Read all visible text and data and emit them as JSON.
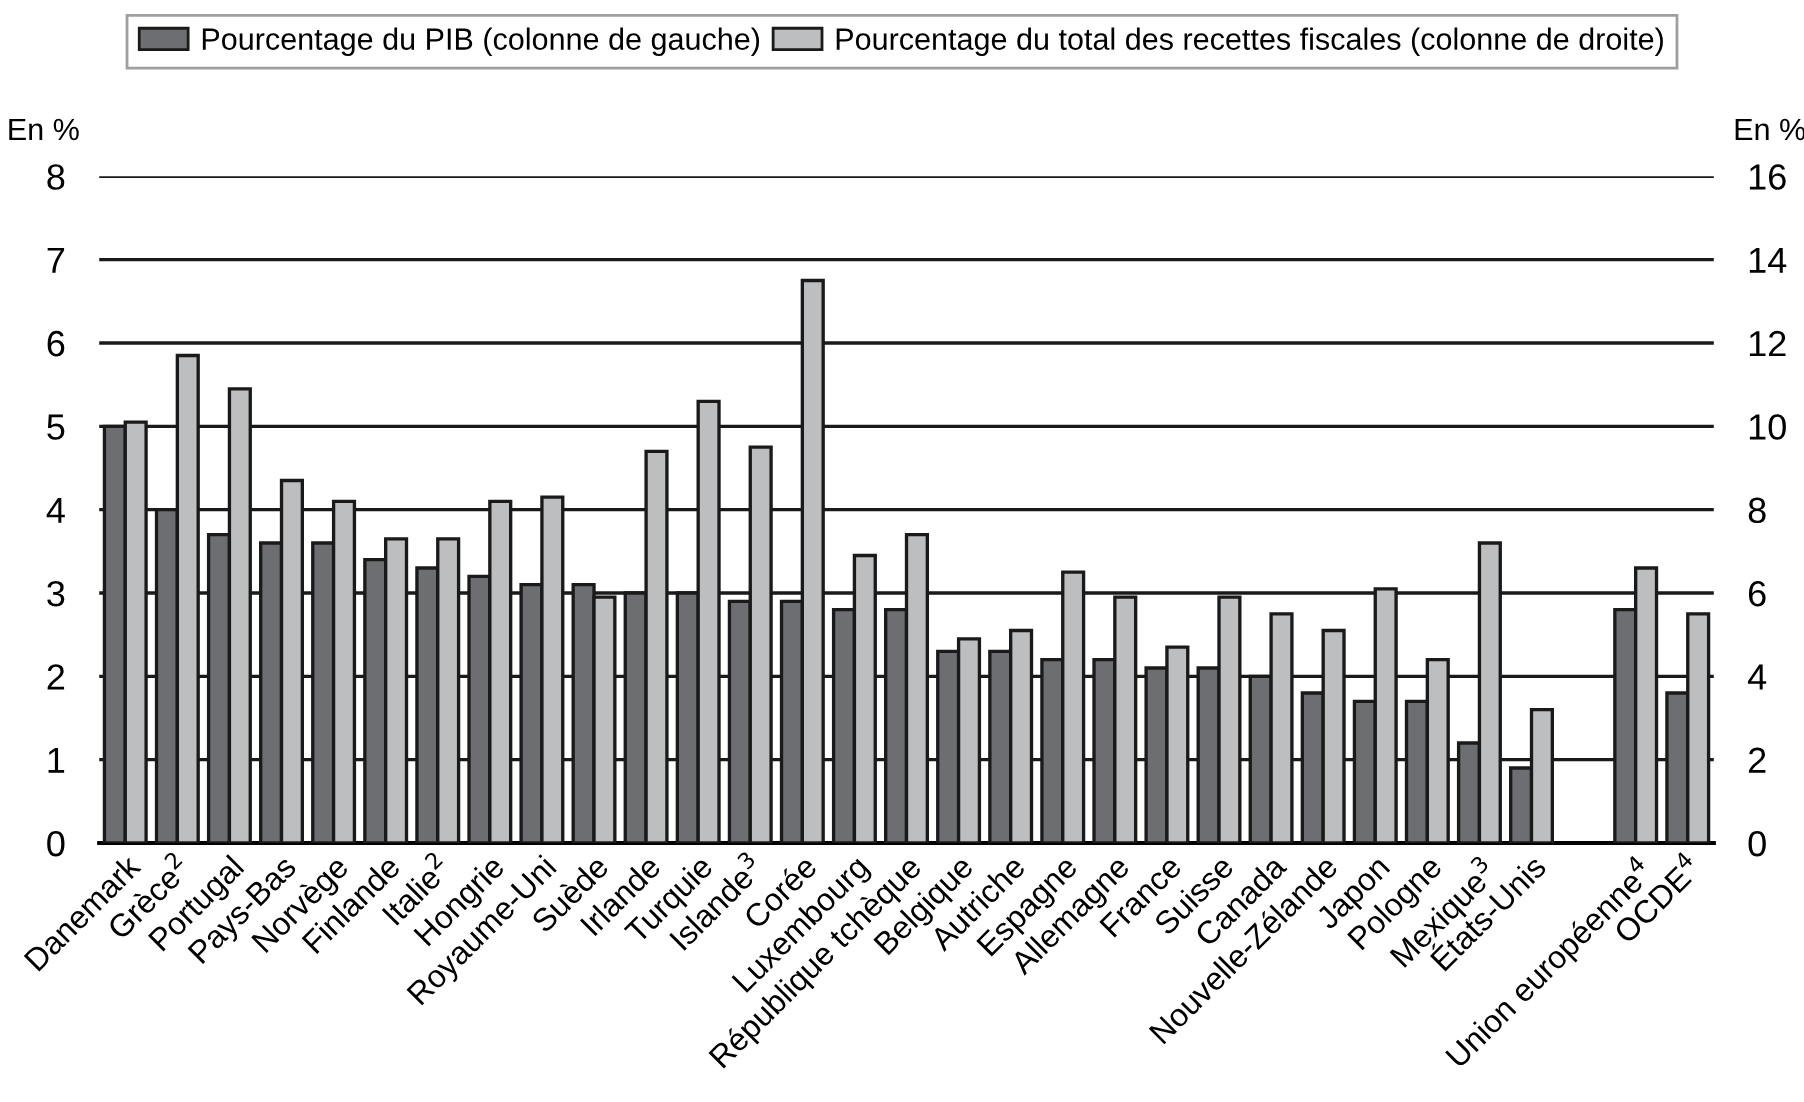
{
  "chart_data": {
    "type": "bar",
    "ylabel": "En %",
    "y2label": "En %",
    "categories": [
      "Danemark",
      "Grèce$^{2}$",
      "Portugal",
      "Pays-Bas",
      "Norvège",
      "Finlande",
      "Italie$^{2}$",
      "Hongrie",
      "Royaume-Uni",
      "Suède",
      "Irlande",
      "Turquie",
      "Islande$^{3}$",
      "Corée",
      "Luxembourg",
      "République tchèque",
      "Belgique",
      "Autriche",
      "Espagne",
      "Allemagne",
      "France",
      "Suisse",
      "Canada",
      "Nouvelle-Zélande",
      "Japon",
      "Pologne",
      "Mexique$^{3}$",
      "États-Unis",
      null,
      "Union européenne$^{4}$",
      "OCDE$^{4}$"
    ],
    "series": [
      {
        "name": "Pourcentage du PIB (colonne de gauche)",
        "color": "#6d6e71",
        "values": [
          5.0,
          4.0,
          3.7,
          3.6,
          3.6,
          3.4,
          3.3,
          3.2,
          3.1,
          3.1,
          3.0,
          3.0,
          2.9,
          2.9,
          2.8,
          2.8,
          2.3,
          2.3,
          2.2,
          2.2,
          2.1,
          2.1,
          2.0,
          1.8,
          1.7,
          1.7,
          1.2,
          0.9,
          null,
          2.8,
          1.8
        ]
      },
      {
        "name": "Pourcentage du total des recettes fiscales (colonne de droite)",
        "color": "#bcbec0",
        "axis": "y2",
        "values": [
          10.1,
          11.7,
          10.9,
          8.7,
          8.2,
          7.3,
          7.3,
          8.2,
          8.3,
          5.9,
          9.4,
          10.6,
          9.5,
          13.5,
          6.9,
          7.4,
          4.9,
          5.1,
          6.5,
          5.9,
          4.7,
          5.9,
          5.5,
          5.1,
          6.1,
          4.4,
          7.2,
          3.2,
          null,
          6.6,
          5.5
        ]
      }
    ],
    "ylim": [
      0,
      8
    ],
    "yticks": [
      0,
      1,
      2,
      3,
      4,
      5,
      6,
      7,
      8
    ],
    "y2lim": [
      0,
      16
    ],
    "y2ticks": [
      0,
      2,
      4,
      6,
      8,
      10,
      12,
      14,
      16
    ],
    "grid": "y",
    "legend": "top"
  }
}
